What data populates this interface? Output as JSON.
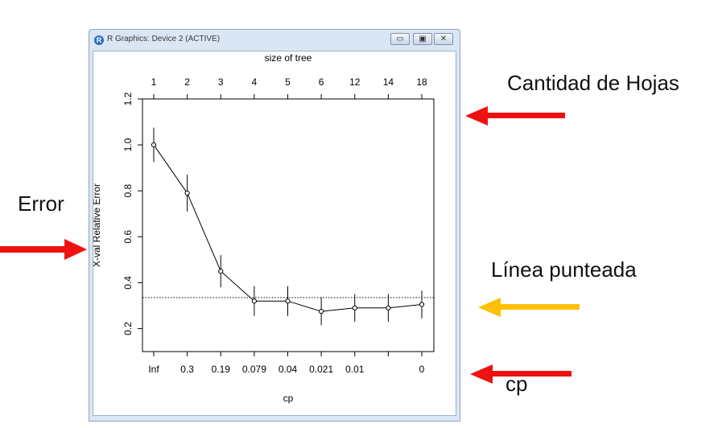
{
  "window": {
    "title": "R Graphics: Device 2 (ACTIVE)",
    "icon_letter": "R",
    "buttons": {
      "minimize": "▭",
      "maximize": "▣",
      "close": "✕"
    }
  },
  "annotations": {
    "cantidad": "Cantidad de Hojas",
    "error": "Error",
    "linea": "Línea punteada",
    "cp": "cp"
  },
  "colors": {
    "red_arrow": "#ee1111",
    "yellow_arrow": "#ffc000"
  },
  "chart_data": {
    "type": "line",
    "top_axis_label": "size of tree",
    "top_ticks": [
      "1",
      "2",
      "3",
      "4",
      "5",
      "6",
      "12",
      "14",
      "18"
    ],
    "xlabel": "cp",
    "bottom_ticks": [
      "Inf",
      "0.3",
      "0.19",
      "0.079",
      "0.04",
      "0.021",
      "0.01",
      "",
      "0"
    ],
    "ylabel": "X-val Relative Error",
    "ylim": [
      0.1,
      1.2
    ],
    "yticks": [
      "0.2",
      "0.4",
      "0.6",
      "0.8",
      "1.0",
      "1.2"
    ],
    "ytick_values": [
      0.2,
      0.4,
      0.6,
      0.8,
      1.0,
      1.2
    ],
    "values": [
      1.0,
      0.79,
      0.45,
      0.32,
      0.32,
      0.275,
      0.29,
      0.29,
      0.305
    ],
    "errors": [
      0.075,
      0.08,
      0.07,
      0.065,
      0.065,
      0.06,
      0.06,
      0.06,
      0.06
    ],
    "hline": 0.335,
    "hline_style": "dotted"
  }
}
